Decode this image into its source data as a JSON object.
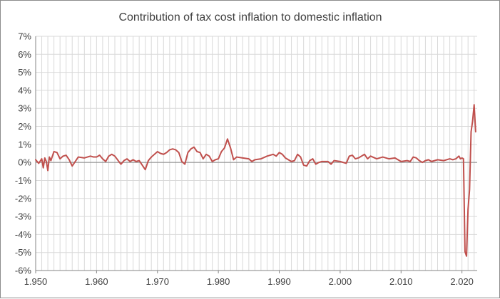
{
  "chart_data": {
    "type": "line",
    "title": "Contribution of tax cost inflation to domestic inflation",
    "xlabel": "",
    "ylabel": "",
    "xlim": [
      1950,
      2022.5
    ],
    "ylim": [
      -6,
      7
    ],
    "y_ticks": [
      -6,
      -5,
      -4,
      -3,
      -2,
      -1,
      0,
      1,
      2,
      3,
      4,
      5,
      6,
      7
    ],
    "y_tick_labels": [
      "-6%",
      "-5%",
      "-4%",
      "-3%",
      "-2%",
      "-1%",
      "0%",
      "1%",
      "2%",
      "3%",
      "4%",
      "5%",
      "6%",
      "7%"
    ],
    "x_ticks": [
      1950,
      1960,
      1970,
      1980,
      1990,
      2000,
      2010,
      2020
    ],
    "x_tick_labels": [
      "1.950",
      "1.960",
      "1.970",
      "1.980",
      "1.990",
      "2.000",
      "2.010",
      "2.020"
    ],
    "grid": true,
    "minor_x_grid_step": 1,
    "legend": "none",
    "colors": {
      "line": "#c0504d",
      "grid": "#d9d9d9",
      "axis": "#868686",
      "text": "#404040"
    },
    "series": [
      {
        "x": [
          1950,
          1950.5,
          1951,
          1951.25,
          1951.5,
          1951.75,
          1952,
          1952.25,
          1952.5,
          1953,
          1953.5,
          1954,
          1954.5,
          1955,
          1955.5,
          1956,
          1957,
          1958,
          1958.5,
          1959,
          1959.5,
          1960,
          1960.5,
          1961,
          1961.5,
          1962,
          1962.5,
          1963,
          1964,
          1964.5,
          1965,
          1965.5,
          1966,
          1966.5,
          1967,
          1968,
          1968.5,
          1969,
          1970,
          1970.5,
          1971,
          1971.5,
          1972,
          1972.5,
          1973,
          1973.5,
          1974,
          1974.5,
          1975,
          1975.5,
          1976,
          1976.5,
          1977,
          1977.5,
          1978,
          1978.5,
          1979,
          1979.5,
          1980,
          1980.5,
          1981,
          1981.5,
          1982,
          1982.5,
          1983,
          1984,
          1985,
          1985.5,
          1986,
          1987,
          1988,
          1989,
          1989.5,
          1990,
          1990.5,
          1991,
          1991.5,
          1992,
          1992.5,
          1993,
          1993.5,
          1994,
          1994.5,
          1995,
          1995.5,
          1996,
          1996.5,
          1997,
          1998,
          1998.5,
          1999,
          2000,
          2001,
          2001.5,
          2002,
          2002.5,
          2003,
          2004,
          2004.5,
          2005,
          2006,
          2007,
          2008,
          2009,
          2010,
          2011,
          2011.5,
          2012,
          2012.5,
          2013,
          2013.5,
          2014,
          2014.5,
          2015,
          2016,
          2017,
          2018,
          2018.5,
          2019,
          2019.5,
          2019.75,
          2020,
          2020.25,
          2020.5,
          2020.75,
          2021,
          2021.25,
          2021.5,
          2021.75,
          2022,
          2022.25
        ],
        "values": [
          0.15,
          -0.05,
          0.2,
          -0.3,
          0.25,
          0.05,
          -0.45,
          0.3,
          0.1,
          0.6,
          0.55,
          0.2,
          0.35,
          0.4,
          0.15,
          -0.2,
          0.3,
          0.25,
          0.3,
          0.35,
          0.3,
          0.3,
          0.4,
          0.2,
          0.05,
          0.35,
          0.45,
          0.35,
          -0.1,
          0.1,
          0.2,
          0.05,
          0.15,
          0.05,
          0.1,
          -0.4,
          0.1,
          0.3,
          0.6,
          0.5,
          0.45,
          0.55,
          0.7,
          0.75,
          0.7,
          0.55,
          0.05,
          -0.1,
          0.55,
          0.75,
          0.85,
          0.6,
          0.55,
          0.2,
          0.45,
          0.35,
          0.05,
          0.15,
          0.2,
          0.6,
          0.8,
          1.3,
          0.8,
          0.15,
          0.3,
          0.25,
          0.2,
          0.05,
          0.15,
          0.2,
          0.35,
          0.45,
          0.35,
          0.55,
          0.45,
          0.25,
          0.15,
          0.05,
          0.1,
          0.45,
          0.3,
          -0.15,
          -0.2,
          0.1,
          0.2,
          -0.1,
          0.0,
          0.05,
          0.05,
          -0.1,
          0.1,
          0.05,
          -0.05,
          0.35,
          0.4,
          0.2,
          0.25,
          0.45,
          0.2,
          0.35,
          0.2,
          0.3,
          0.2,
          0.25,
          0.05,
          0.1,
          0.05,
          0.3,
          0.25,
          0.1,
          0.0,
          0.1,
          0.15,
          0.05,
          0.15,
          0.1,
          0.2,
          0.15,
          0.2,
          0.35,
          0.2,
          0.25,
          0.2,
          -4.95,
          -5.2,
          -2.6,
          -1.5,
          1.7,
          2.3,
          3.2,
          1.7
        ]
      }
    ]
  }
}
